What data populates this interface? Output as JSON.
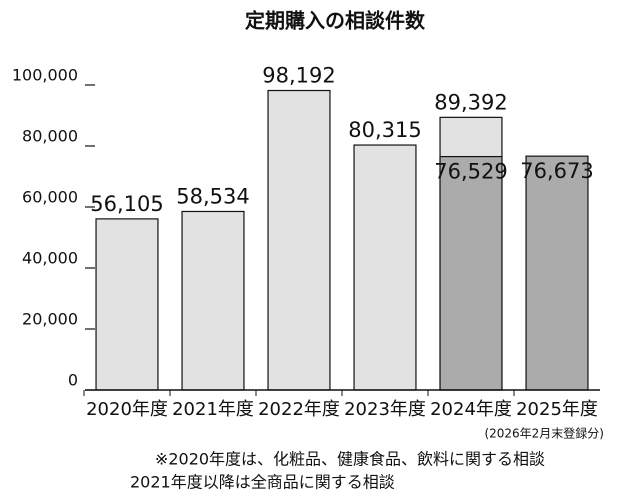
{
  "chart_data": {
    "type": "bar",
    "title": "定期購入の相談件数",
    "categories": [
      "2020年度",
      "2021年度",
      "2022年度",
      "2023年度",
      "2024年度",
      "2025年度"
    ],
    "category_note": "(2026年2月末登録分)",
    "series": [
      {
        "color": "#e2e2e2",
        "values": [
          56105,
          58534,
          98192,
          80315,
          89392,
          null
        ],
        "value_labels": [
          "56,105",
          "58,534",
          "98,192",
          "80,315",
          "89,392",
          null
        ]
      },
      {
        "color": "#ababab",
        "values": [
          null,
          null,
          null,
          null,
          76529,
          76673
        ],
        "value_labels": [
          null,
          null,
          null,
          null,
          "76,529",
          "76,673"
        ]
      }
    ],
    "ylim": [
      0,
      100000
    ],
    "yticks": [
      0,
      {
        "value": 20000,
        "label": "20,000"
      },
      {
        "value": 40000,
        "label": "40,000"
      },
      {
        "value": 60000,
        "label": "60,000"
      },
      {
        "value": 80000,
        "label": "80,000"
      },
      {
        "value": 100000,
        "label": "100,000"
      }
    ],
    "footnotes": [
      "※2020年度は、化粧品、健康食品、飲料に関する相談",
      "2021年度以降は全商品に関する相談"
    ]
  }
}
